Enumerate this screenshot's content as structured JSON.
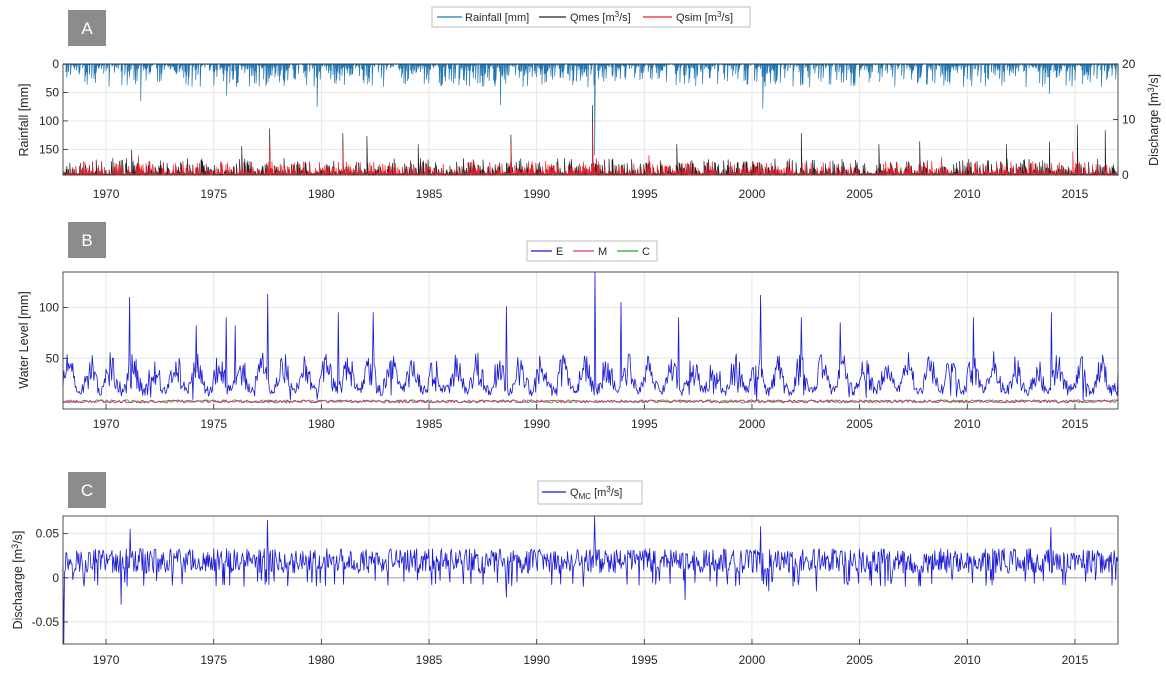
{
  "chart_data": [
    {
      "type": "line",
      "panel_label": "A",
      "legend": [
        "Rainfall [mm]",
        "Qmes [m3/s]",
        "Qsim [m3/s]"
      ],
      "legend_position": "top-center",
      "ylabel_left": "Rainfall [mm]",
      "ylabel_right": "Discharge [m3/s]",
      "ylim_left": [
        0,
        195
      ],
      "ylim_left_reversed": true,
      "ylim_right": [
        0,
        20
      ],
      "yticks_left": [
        "0",
        "50",
        "100",
        "150"
      ],
      "yticks_right": [
        "0",
        "10",
        "20"
      ],
      "xlim": [
        1968,
        2017
      ],
      "xticks": [
        "1970",
        "1975",
        "1980",
        "1985",
        "1990",
        "1995",
        "2000",
        "2005",
        "2010",
        "2015"
      ],
      "grid": true,
      "series": [
        {
          "name": "Rainfall [mm]",
          "axis": "left",
          "color": "#1f77b4",
          "typical_range": [
            0,
            40
          ],
          "peaks": [
            [
              1971.6,
              65
            ],
            [
              1975.6,
              55
            ],
            [
              1979.8,
              75
            ],
            [
              1988.3,
              72
            ],
            [
              1992.7,
              160
            ],
            [
              2000.5,
              78
            ],
            [
              2013.8,
              52
            ]
          ]
        },
        {
          "name": "Qmes [m3/s]",
          "axis": "right",
          "color": "#222222",
          "typical_range": [
            0,
            3
          ],
          "peaks": [
            [
              1971.2,
              4.5
            ],
            [
              1976.3,
              5.2
            ],
            [
              1977.6,
              8.3
            ],
            [
              1981.0,
              7.5
            ],
            [
              1982.1,
              7.0
            ],
            [
              1984.5,
              5.5
            ],
            [
              1988.8,
              7.2
            ],
            [
              1992.6,
              12.5
            ],
            [
              1996.5,
              5.5
            ],
            [
              2002.3,
              7.5
            ],
            [
              2005.9,
              5.5
            ],
            [
              2007.8,
              6.0
            ],
            [
              2011.8,
              5.5
            ],
            [
              2013.8,
              6.0
            ],
            [
              2015.1,
              9.0
            ],
            [
              2016.4,
              8.0
            ]
          ]
        },
        {
          "name": "Qsim [m3/s]",
          "axis": "right",
          "color": "#e8202a",
          "typical_range": [
            0,
            2.5
          ],
          "peaks": [
            [
              1971.5,
              3.5
            ],
            [
              1977.6,
              6.0
            ],
            [
              1981.0,
              5.0
            ],
            [
              1988.8,
              5.5
            ],
            [
              1992.6,
              9.5
            ],
            [
              1995.2,
              3.5
            ],
            [
              2008.8,
              3.2
            ],
            [
              2014.9,
              4.2
            ]
          ]
        }
      ]
    },
    {
      "type": "line",
      "panel_label": "B",
      "legend": [
        "E",
        "M",
        "C"
      ],
      "legend_position": "top-center",
      "ylabel": "Water Level [mm]",
      "ylim": [
        0,
        135
      ],
      "yticks": [
        "50",
        "100"
      ],
      "xlim": [
        1968,
        2017
      ],
      "xticks": [
        "1970",
        "1975",
        "1980",
        "1985",
        "1990",
        "1995",
        "2000",
        "2005",
        "2010",
        "2015"
      ],
      "grid": true,
      "series": [
        {
          "name": "E",
          "color": "#1a1ad4",
          "typical_range": [
            8,
            55
          ],
          "peaks": [
            [
              1971.1,
              110
            ],
            [
              1974.2,
              82
            ],
            [
              1975.6,
              90
            ],
            [
              1976.0,
              82
            ],
            [
              1977.5,
              113
            ],
            [
              1980.8,
              95
            ],
            [
              1982.4,
              95
            ],
            [
              1988.6,
              101
            ],
            [
              1992.7,
              135
            ],
            [
              1993.9,
              105
            ],
            [
              1996.6,
              90
            ],
            [
              2000.4,
              112
            ],
            [
              2002.3,
              90
            ],
            [
              2004.1,
              85
            ],
            [
              2010.3,
              90
            ],
            [
              2013.9,
              95
            ]
          ]
        },
        {
          "name": "M",
          "color": "#d63384",
          "typical_range": [
            6,
            9
          ],
          "peaks": []
        },
        {
          "name": "C",
          "color": "#2ca02c",
          "typical_range": [
            6,
            9
          ],
          "peaks": []
        }
      ]
    },
    {
      "type": "line",
      "panel_label": "C",
      "legend": [
        "QMC [m3/s]"
      ],
      "legend_position": "top-center",
      "ylabel": "Dischaarge [m3/s]",
      "ylim": [
        -0.075,
        0.07
      ],
      "yticks": [
        "-0.05",
        "0",
        "0.05"
      ],
      "xlim": [
        1968,
        2017
      ],
      "xticks": [
        "1970",
        "1975",
        "1980",
        "1985",
        "1990",
        "1995",
        "2000",
        "2005",
        "2010",
        "2015"
      ],
      "grid": true,
      "series": [
        {
          "name": "QMC [m3/s]",
          "color": "#1a1ad4",
          "typical_range": [
            -0.005,
            0.035
          ],
          "peaks": [
            [
              1971.1,
              0.055
            ],
            [
              1977.5,
              0.065
            ],
            [
              1992.7,
              0.07
            ],
            [
              2000.4,
              0.058
            ],
            [
              2013.9,
              0.057
            ],
            [
              1968.05,
              -0.075
            ],
            [
              1970.7,
              -0.03
            ],
            [
              1988.6,
              -0.022
            ],
            [
              1996.9,
              -0.025
            ],
            [
              2000.8,
              -0.015
            ],
            [
              2003.0,
              -0.015
            ]
          ]
        }
      ]
    }
  ]
}
